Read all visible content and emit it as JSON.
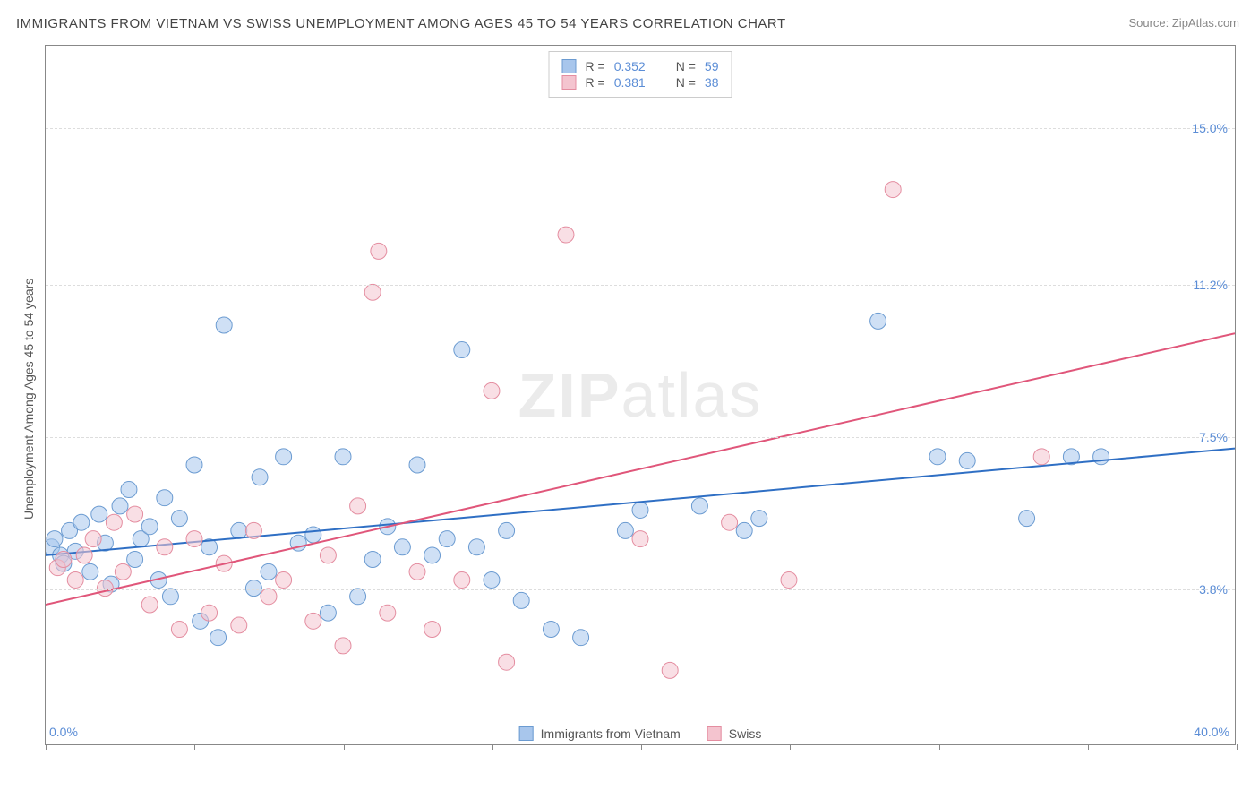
{
  "title": "IMMIGRANTS FROM VIETNAM VS SWISS UNEMPLOYMENT AMONG AGES 45 TO 54 YEARS CORRELATION CHART",
  "source": "Source: ZipAtlas.com",
  "watermark": "ZIPatlas",
  "y_axis_title": "Unemployment Among Ages 45 to 54 years",
  "chart": {
    "type": "scatter",
    "xlim": [
      0,
      40
    ],
    "ylim": [
      0,
      17
    ],
    "x_ticks": [
      0,
      5,
      10,
      15,
      20,
      25,
      30,
      35,
      40
    ],
    "x_tick_labels": {
      "0": "0.0%",
      "40": "40.0%"
    },
    "y_ticks_labeled": [
      {
        "value": 3.8,
        "label": "3.8%"
      },
      {
        "value": 7.5,
        "label": "7.5%"
      },
      {
        "value": 11.2,
        "label": "11.2%"
      },
      {
        "value": 15.0,
        "label": "15.0%"
      }
    ],
    "background_color": "#ffffff",
    "grid_color": "#dddddd",
    "border_color": "#888888",
    "marker_radius": 9,
    "marker_opacity": 0.55,
    "line_width": 2,
    "series": [
      {
        "name": "Immigrants from Vietnam",
        "color_fill": "#a8c6ec",
        "color_stroke": "#6b9bd1",
        "line_color": "#2f6fc4",
        "R": "0.352",
        "N": "59",
        "trend": {
          "x1": 0,
          "y1": 4.6,
          "x2": 40,
          "y2": 7.2
        },
        "points": [
          [
            0.2,
            4.8
          ],
          [
            0.3,
            5.0
          ],
          [
            0.5,
            4.6
          ],
          [
            0.6,
            4.4
          ],
          [
            0.8,
            5.2
          ],
          [
            1.0,
            4.7
          ],
          [
            1.2,
            5.4
          ],
          [
            1.5,
            4.2
          ],
          [
            1.8,
            5.6
          ],
          [
            2.0,
            4.9
          ],
          [
            2.2,
            3.9
          ],
          [
            2.5,
            5.8
          ],
          [
            2.8,
            6.2
          ],
          [
            3.0,
            4.5
          ],
          [
            3.2,
            5.0
          ],
          [
            3.5,
            5.3
          ],
          [
            3.8,
            4.0
          ],
          [
            4.0,
            6.0
          ],
          [
            4.2,
            3.6
          ],
          [
            4.5,
            5.5
          ],
          [
            5.0,
            6.8
          ],
          [
            5.2,
            3.0
          ],
          [
            5.5,
            4.8
          ],
          [
            5.8,
            2.6
          ],
          [
            6.0,
            10.2
          ],
          [
            6.5,
            5.2
          ],
          [
            7.0,
            3.8
          ],
          [
            7.2,
            6.5
          ],
          [
            7.5,
            4.2
          ],
          [
            8.0,
            7.0
          ],
          [
            8.5,
            4.9
          ],
          [
            9.0,
            5.1
          ],
          [
            9.5,
            3.2
          ],
          [
            10.0,
            7.0
          ],
          [
            10.5,
            3.6
          ],
          [
            11.0,
            4.5
          ],
          [
            11.5,
            5.3
          ],
          [
            12.0,
            4.8
          ],
          [
            12.5,
            6.8
          ],
          [
            13.0,
            4.6
          ],
          [
            13.5,
            5.0
          ],
          [
            14.0,
            9.6
          ],
          [
            14.5,
            4.8
          ],
          [
            15.0,
            4.0
          ],
          [
            15.5,
            5.2
          ],
          [
            16.0,
            3.5
          ],
          [
            17.0,
            2.8
          ],
          [
            18.0,
            2.6
          ],
          [
            19.5,
            5.2
          ],
          [
            20.0,
            5.7
          ],
          [
            22.0,
            5.8
          ],
          [
            23.5,
            5.2
          ],
          [
            24.0,
            5.5
          ],
          [
            28.0,
            10.3
          ],
          [
            30.0,
            7.0
          ],
          [
            31.0,
            6.9
          ],
          [
            33.0,
            5.5
          ],
          [
            34.5,
            7.0
          ],
          [
            35.5,
            7.0
          ]
        ]
      },
      {
        "name": "Swiss",
        "color_fill": "#f4c4cf",
        "color_stroke": "#e48da0",
        "line_color": "#e0567a",
        "R": "0.381",
        "N": "38",
        "trend": {
          "x1": 0,
          "y1": 3.4,
          "x2": 40,
          "y2": 10.0
        },
        "points": [
          [
            0.4,
            4.3
          ],
          [
            0.6,
            4.5
          ],
          [
            1.0,
            4.0
          ],
          [
            1.3,
            4.6
          ],
          [
            1.6,
            5.0
          ],
          [
            2.0,
            3.8
          ],
          [
            2.3,
            5.4
          ],
          [
            2.6,
            4.2
          ],
          [
            3.0,
            5.6
          ],
          [
            3.5,
            3.4
          ],
          [
            4.0,
            4.8
          ],
          [
            4.5,
            2.8
          ],
          [
            5.0,
            5.0
          ],
          [
            5.5,
            3.2
          ],
          [
            6.0,
            4.4
          ],
          [
            6.5,
            2.9
          ],
          [
            7.0,
            5.2
          ],
          [
            7.5,
            3.6
          ],
          [
            8.0,
            4.0
          ],
          [
            9.0,
            3.0
          ],
          [
            9.5,
            4.6
          ],
          [
            10.0,
            2.4
          ],
          [
            10.5,
            5.8
          ],
          [
            11.0,
            11.0
          ],
          [
            11.2,
            12.0
          ],
          [
            11.5,
            3.2
          ],
          [
            12.5,
            4.2
          ],
          [
            13.0,
            2.8
          ],
          [
            14.0,
            4.0
          ],
          [
            15.0,
            8.6
          ],
          [
            15.5,
            2.0
          ],
          [
            17.5,
            12.4
          ],
          [
            20.0,
            5.0
          ],
          [
            21.0,
            1.8
          ],
          [
            23.0,
            5.4
          ],
          [
            25.0,
            4.0
          ],
          [
            28.5,
            13.5
          ],
          [
            33.5,
            7.0
          ]
        ]
      }
    ],
    "legend_bottom": [
      {
        "label": "Immigrants from Vietnam",
        "fill": "#a8c6ec",
        "stroke": "#6b9bd1"
      },
      {
        "label": "Swiss",
        "fill": "#f4c4cf",
        "stroke": "#e48da0"
      }
    ]
  }
}
